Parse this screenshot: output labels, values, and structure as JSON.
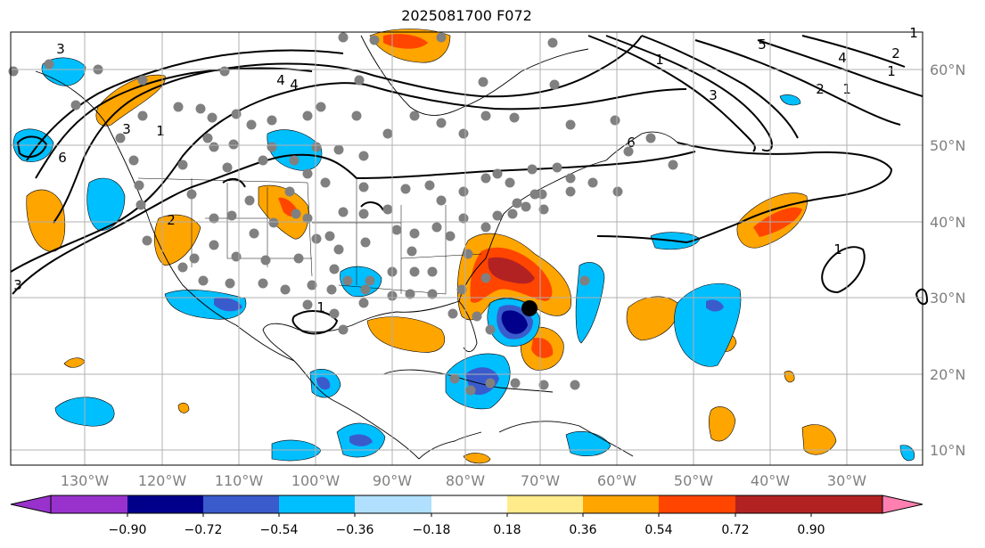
{
  "title": "2025081700 F072",
  "lon_ticks": [
    "130°W",
    "120°W",
    "110°W",
    "100°W",
    "90°W",
    "80°W",
    "70°W",
    "60°W",
    "50°W",
    "40°W",
    "30°W"
  ],
  "lat_ticks": [
    "60°N",
    "50°N",
    "40°N",
    "30°N",
    "20°N",
    "10°N"
  ],
  "colorbar": {
    "labels": [
      "−0.90",
      "−0.72",
      "−0.54",
      "−0.36",
      "−0.18",
      "0.18",
      "0.36",
      "0.54",
      "0.72",
      "0.90"
    ],
    "colors": [
      "#9932cc",
      "#00008b",
      "#3a5bcc",
      "#00bfff",
      "#b0e0fe",
      "#ffffff",
      "#ffeb8a",
      "#ffa500",
      "#ff4500",
      "#b22222",
      "#ff80b0"
    ]
  },
  "contour_labels": [
    "3",
    "6",
    "4",
    "1",
    "3",
    "2",
    "3",
    "1",
    "4",
    "5",
    "4",
    "2",
    "3",
    "1",
    "1",
    "2",
    "1",
    "6",
    "1",
    "1"
  ],
  "stations_color": "#808080",
  "storm_marker_color": "#000000",
  "colors": {
    "positive_fill": [
      "#ffa500",
      "#ff4500",
      "#b22222"
    ],
    "negative_fill": [
      "#00bfff",
      "#3a5bcc",
      "#00008b"
    ]
  }
}
